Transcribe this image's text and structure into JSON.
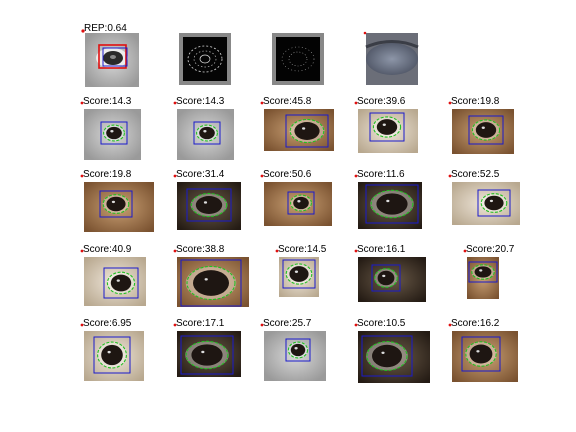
{
  "reference": {
    "label": "REP:0.64",
    "panels": [
      "reference-eye",
      "gradient-map-1",
      "gradient-map-2",
      "grayscale-eye"
    ]
  },
  "results": [
    {
      "label": "Score:14.3",
      "tone": "gray"
    },
    {
      "label": "Score:14.3",
      "tone": "gray"
    },
    {
      "label": "Score:45.8",
      "tone": "brown"
    },
    {
      "label": "Score:39.6",
      "tone": "light"
    },
    {
      "label": "Score:19.8",
      "tone": "brown"
    },
    {
      "label": "Score:19.8",
      "tone": "brown"
    },
    {
      "label": "Score:31.4",
      "tone": "dark"
    },
    {
      "label": "Score:50.6",
      "tone": "brown"
    },
    {
      "label": "Score:11.6",
      "tone": "dark"
    },
    {
      "label": "Score:52.5",
      "tone": "light"
    },
    {
      "label": "Score:40.9",
      "tone": "light"
    },
    {
      "label": "Score:38.8",
      "tone": "brown"
    },
    {
      "label": "Score:14.5",
      "tone": "light"
    },
    {
      "label": "Score:16.1",
      "tone": "dark"
    },
    {
      "label": "Score:20.7",
      "tone": "brown"
    },
    {
      "label": "Score:6.95",
      "tone": "light"
    },
    {
      "label": "Score:17.1",
      "tone": "dark"
    },
    {
      "label": "Score:25.7",
      "tone": "gray"
    },
    {
      "label": "Score:10.5",
      "tone": "dark"
    },
    {
      "label": "Score:16.2",
      "tone": "brown"
    }
  ],
  "colors": {
    "detection_box": "#1a1acc",
    "contour": "#22c022",
    "reference_box": "#e01010",
    "marker": "#e01010"
  }
}
